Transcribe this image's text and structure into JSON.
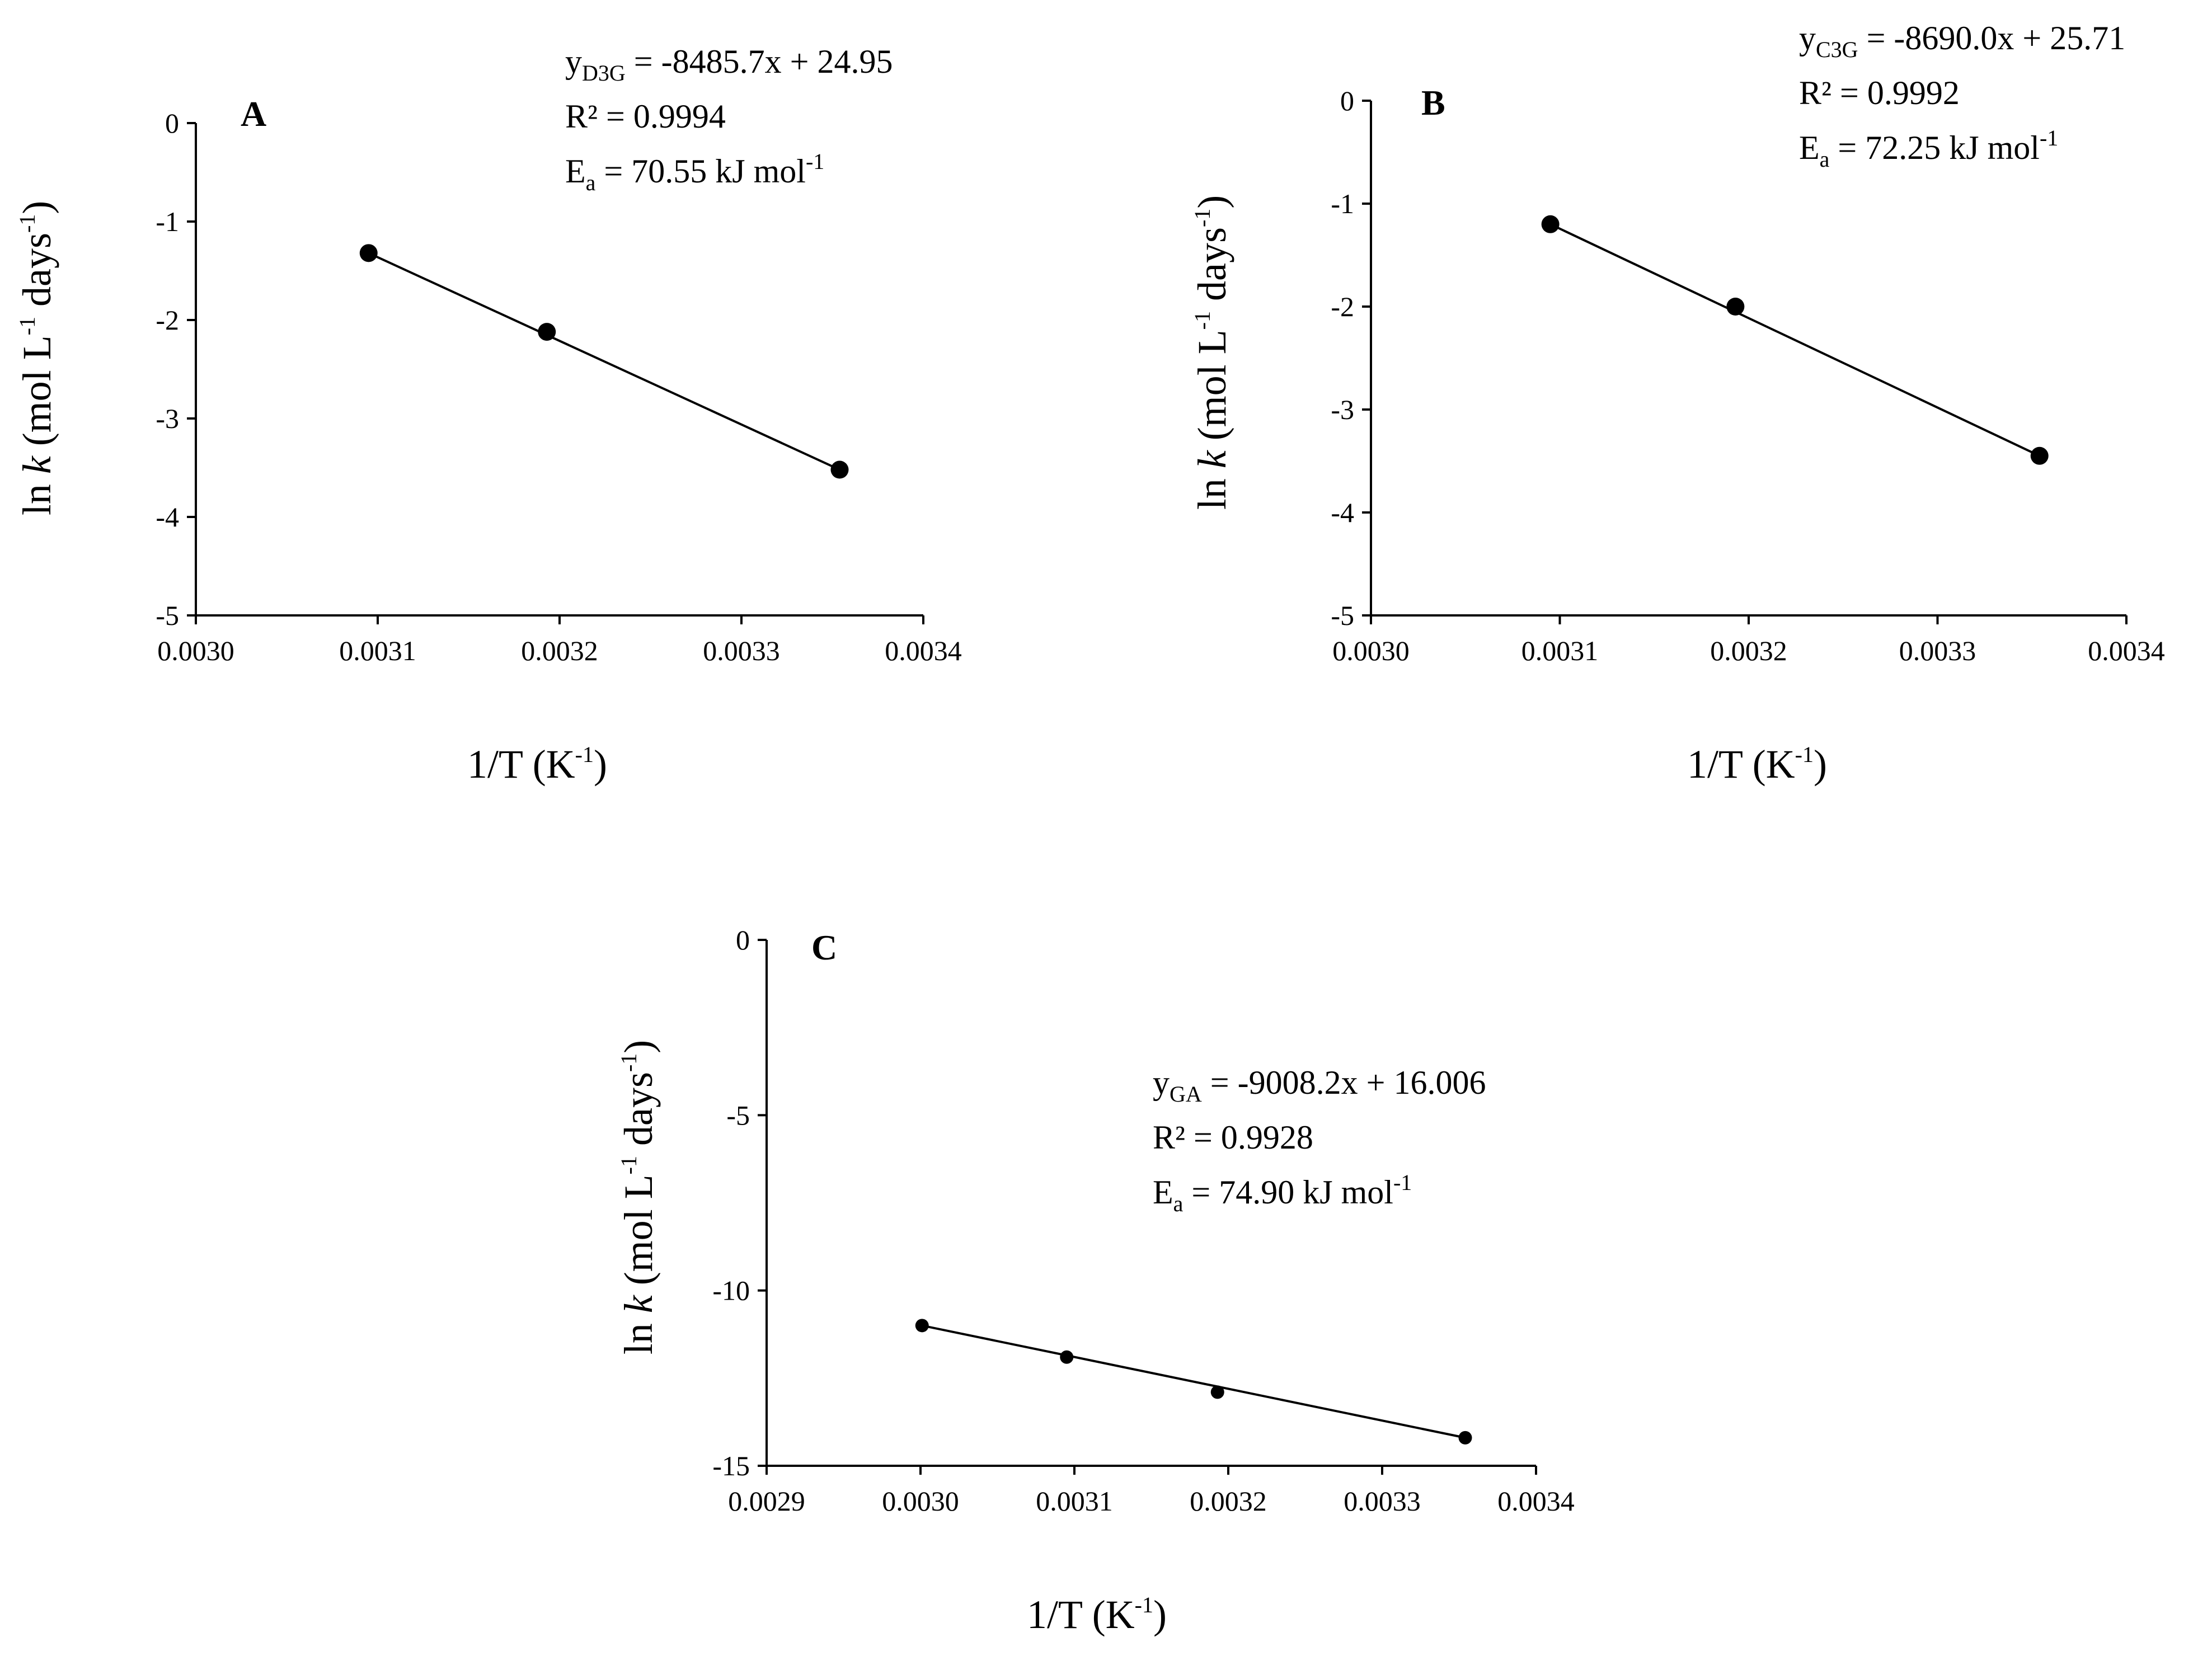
{
  "chart_data": [
    {
      "type": "scatter",
      "panel": "A",
      "equation": {
        "y_var": "y",
        "y_sub": "D3G",
        "rhs": " = -8485.7x + 24.95"
      },
      "r2": "R² = 0.9994",
      "ea": {
        "sym": "E",
        "sym_sub": "a",
        "rhs": " = 70.55 kJ mol",
        "unit_sup": "-1"
      },
      "xlim": [
        0.003,
        0.0034
      ],
      "ylim": [
        -5,
        0
      ],
      "xticks": [
        "0.0030",
        "0.0031",
        "0.0032",
        "0.0033",
        "0.0034"
      ],
      "yticks": [
        "0",
        "-1",
        "-2",
        "-3",
        "-4",
        "-5"
      ],
      "xlabel": {
        "main": "1/T (K",
        "sup": "-1",
        "end": ")"
      },
      "ylabel": {
        "pre": "ln ",
        "k": "k",
        "mid": " (mol L",
        "sup1": "-1",
        "mid2": " days",
        "sup2": "-1",
        "end": ")"
      },
      "x": [
        0.003095,
        0.003193,
        0.003354
      ],
      "y": [
        -1.32,
        -2.12,
        -3.52
      ],
      "fit": {
        "slope": -8485.7,
        "intercept": 24.95
      }
    },
    {
      "type": "scatter",
      "panel": "B",
      "equation": {
        "y_var": "y",
        "y_sub": "C3G",
        "rhs": " = -8690.0x + 25.71"
      },
      "r2": "R² = 0.9992",
      "ea": {
        "sym": "E",
        "sym_sub": "a",
        "rhs": " = 72.25 kJ mol",
        "unit_sup": "-1"
      },
      "xlim": [
        0.003,
        0.0034
      ],
      "ylim": [
        -5,
        0
      ],
      "xticks": [
        "0.0030",
        "0.0031",
        "0.0032",
        "0.0033",
        "0.0034"
      ],
      "yticks": [
        "0",
        "-1",
        "-2",
        "-3",
        "-4",
        "-5"
      ],
      "xlabel": {
        "main": "1/T (K",
        "sup": "-1",
        "end": ")"
      },
      "ylabel": {
        "pre": "ln ",
        "k": "k",
        "mid": " (mol L",
        "sup1": "-1",
        "mid2": " days",
        "sup2": "-1",
        "end": ")"
      },
      "x": [
        0.003095,
        0.003193,
        0.003354
      ],
      "y": [
        -1.2,
        -2.0,
        -3.45
      ],
      "fit": {
        "slope": -8690.0,
        "intercept": 25.71
      }
    },
    {
      "type": "scatter",
      "panel": "C",
      "equation": {
        "y_var": "y",
        "y_sub": "GA",
        "rhs": " = -9008.2x + 16.006"
      },
      "r2": "R² = 0.9928",
      "ea": {
        "sym": "E",
        "sym_sub": "a",
        "rhs": " = 74.90 kJ mol",
        "unit_sup": "-1"
      },
      "xlim": [
        0.0029,
        0.0034
      ],
      "ylim": [
        -15,
        0
      ],
      "xticks": [
        "0.0029",
        "0.0030",
        "0.0031",
        "0.0032",
        "0.0033",
        "0.0034"
      ],
      "yticks": [
        "0",
        "-5",
        "-10",
        "-15"
      ],
      "xlabel": {
        "main": "1/T (K",
        "sup": "-1",
        "end": ")"
      },
      "ylabel": {
        "pre": "ln ",
        "k": "k",
        "mid": " (mol L",
        "sup1": "-1",
        "mid2": " days",
        "sup2": "-1",
        "end": ")"
      },
      "x": [
        0.003001,
        0.003095,
        0.003193,
        0.003354
      ],
      "y": [
        -11.0,
        -11.9,
        -12.9,
        -14.2
      ],
      "fit": {
        "slope": -9008.2,
        "intercept": 16.006
      }
    }
  ]
}
